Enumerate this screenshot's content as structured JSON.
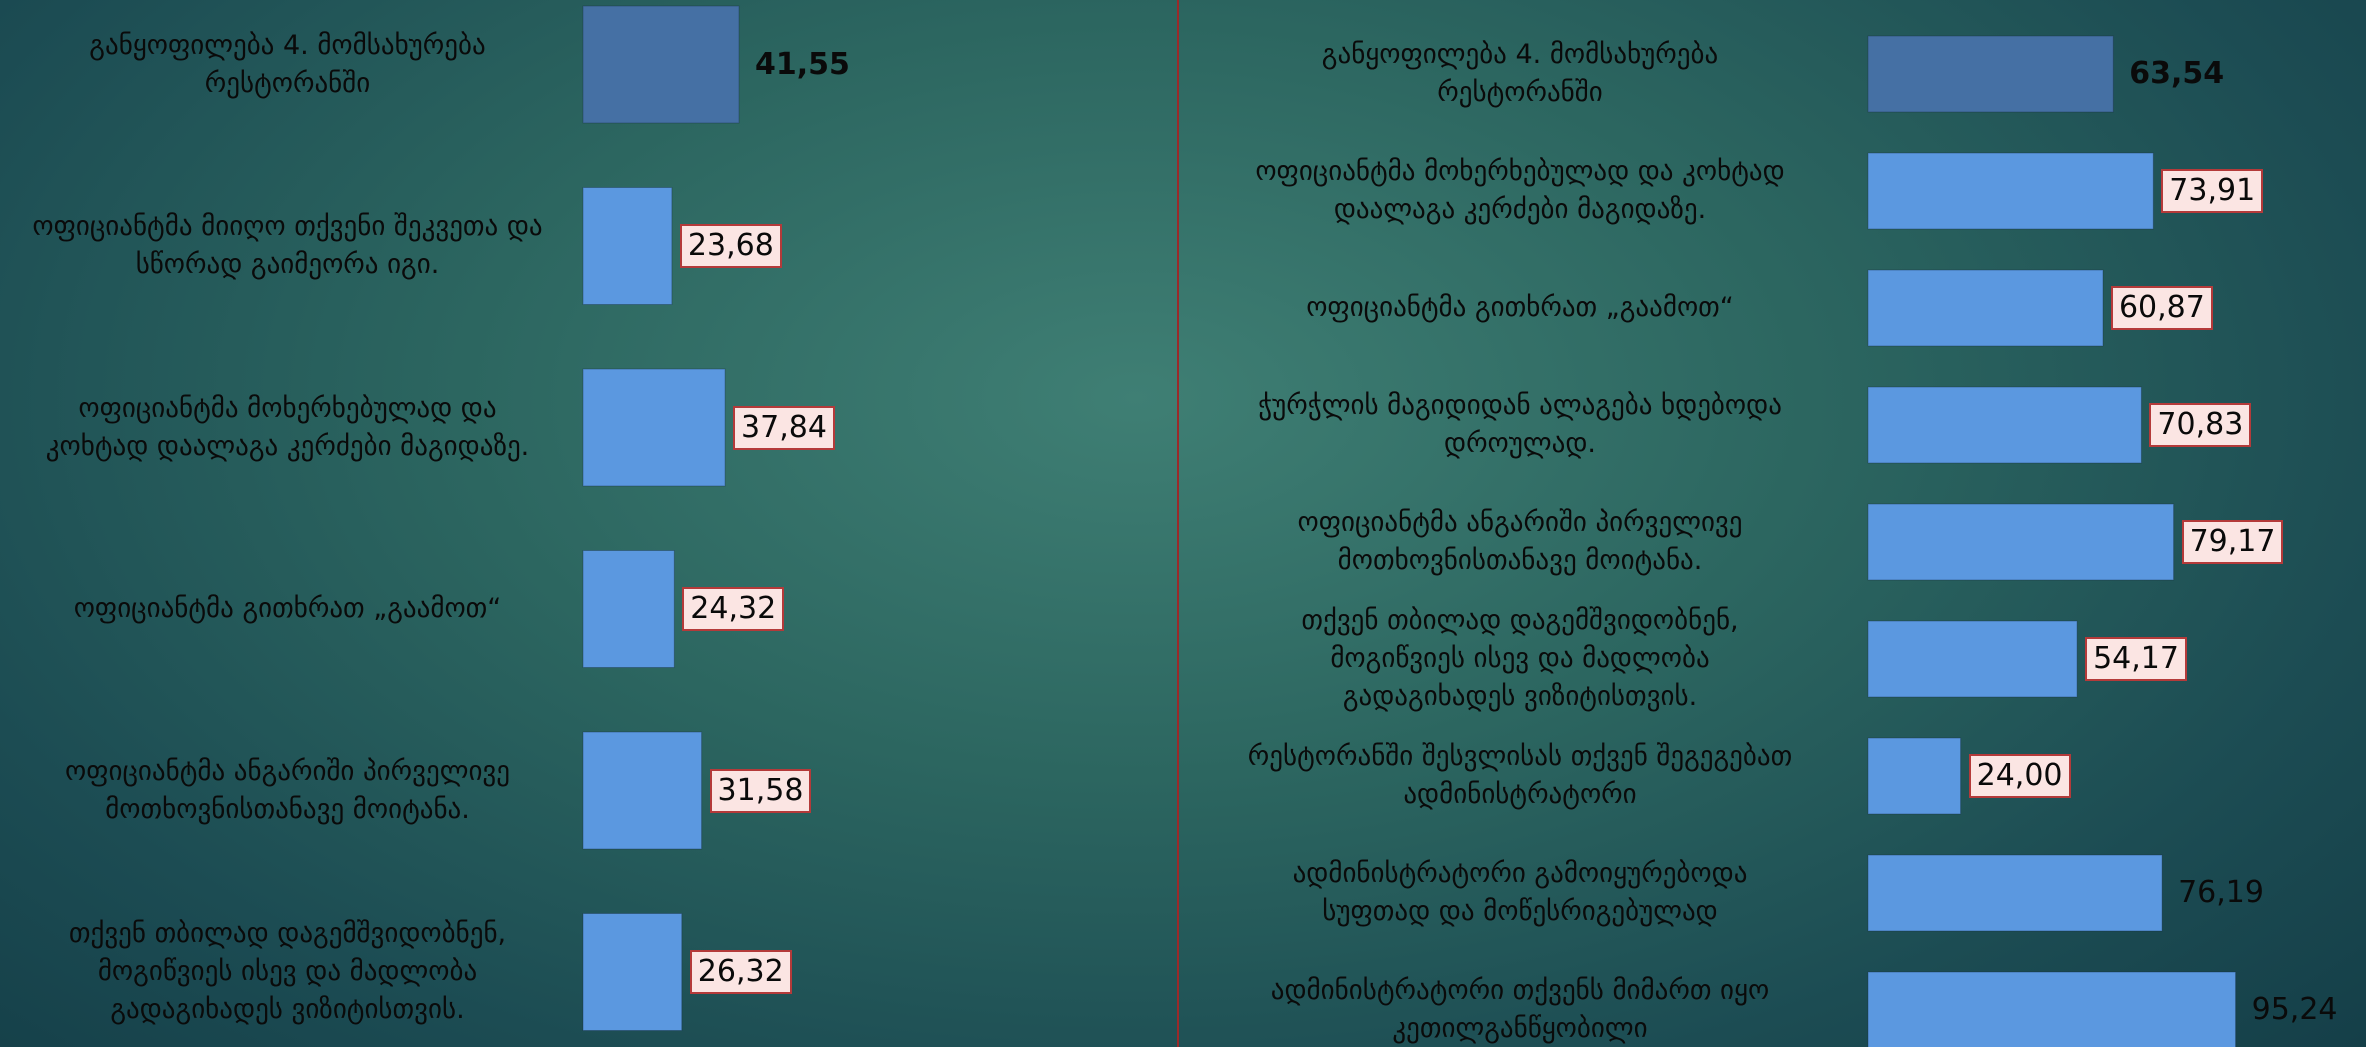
{
  "colors": {
    "header_bar": "#4570a4",
    "bar": "#5b98e0",
    "label_box_bg": "#fbe5e3",
    "label_box_border": "#b43a3a",
    "divider": "#9a2a2a"
  },
  "chart_data": [
    {
      "type": "bar",
      "orientation": "horizontal",
      "xlim": [
        0,
        100
      ],
      "categories": [
        "განყოფილება 4. მომსახურება რესტორანში",
        "ოფიციანტმა მიიღო თქვენი შეკვეთა და სწორად გაიმეორა იგი.",
        "ოფიციანტმა მოხერხებულად და კოხტად დაალაგა კერძები მაგიდაზე.",
        "ოფიციანტმა გითხრათ „გაამოთ“",
        "ოფიციანტმა ანგარიში პირველივე მოთხოვნისთანავე მოიტანა.",
        "თქვენ თბილად დაგემშვიდობნენ, მოგიწვიეს ისევ და მადლობა გადაგიხადეს ვიზიტისთვის."
      ],
      "values": [
        41.55,
        23.68,
        37.84,
        24.32,
        31.58,
        26.32
      ],
      "value_labels": [
        "41,55",
        "23,68",
        "37,84",
        "24,32",
        "31,58",
        "26,32"
      ]
    },
    {
      "type": "bar",
      "orientation": "horizontal",
      "xlim": [
        0,
        100
      ],
      "categories": [
        "განყოფილება 4. მომსახურება რესტორანში",
        "ოფიციანტმა მოხერხებულად და კოხტად დაალაგა კერძები მაგიდაზე.",
        "ოფიციანტმა გითხრათ „გაამოთ“",
        "ჭურჭლის მაგიდიდან ალაგება ხდებოდა დროულად.",
        "ოფიციანტმა ანგარიში პირველივე მოთხოვნისთანავე მოიტანა.",
        "თქვენ თბილად დაგემშვიდობნენ, მოგიწვიეს ისევ და მადლობა გადაგიხადეს ვიზიტისთვის.",
        "რესტორანში შესვლისას თქვენ შეგეგებათ ადმინისტრატორი",
        "ადმინისტრატორი გამოიყურებოდა სუფთად და მოწესრიგებულად",
        "ადმინისტრატორი თქვენს მიმართ იყო კეთილგანწყობილი"
      ],
      "values": [
        63.54,
        73.91,
        60.87,
        70.83,
        79.17,
        54.17,
        24.0,
        76.19,
        95.24
      ],
      "value_labels": [
        "63,54",
        "73,91",
        "60,87",
        "70,83",
        "79,17",
        "54,17",
        "24,00",
        "76,19",
        "95,24"
      ]
    }
  ]
}
